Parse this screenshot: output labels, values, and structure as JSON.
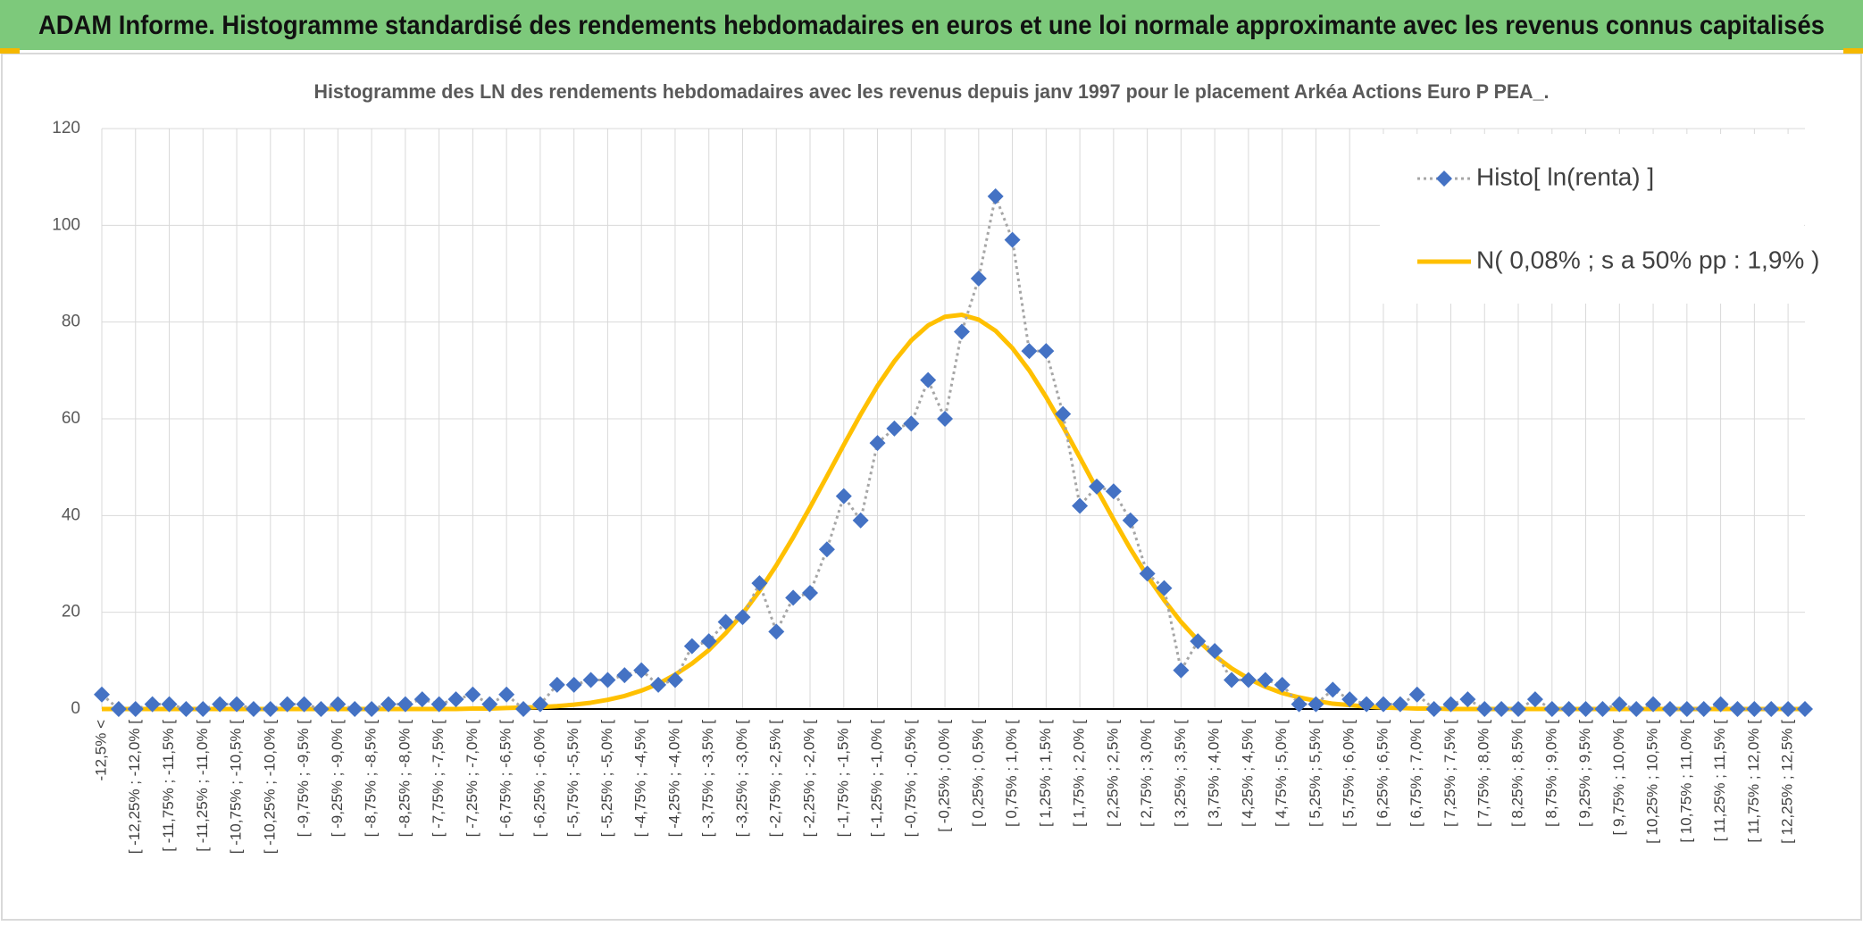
{
  "banner": {
    "title": "ADAM Informe. Histogramme standardisé des rendements hebdomadaires en euros et une loi normale approximante avec les revenus connus capitalisés"
  },
  "chart_data": {
    "type": "line",
    "title": "Histogramme des LN des rendements hebdomadaires avec les revenus depuis janv 1997 pour le placement Arkéa Actions Euro P PEA_.",
    "categories": [
      "-12,5% <",
      null,
      "[ -12,25% ; -12,0% [",
      null,
      "[ -11,75% ; -11,5% [",
      null,
      "[ -11,25% ; -11,0% [",
      null,
      "[ -10,75% ; -10,5% [",
      null,
      "[ -10,25% ; -10,0% [",
      null,
      "[ -9,75% ; -9,5% [",
      null,
      "[ -9,25% ; -9,0% [",
      null,
      "[ -8,75% ; -8,5% [",
      null,
      "[ -8,25% ; -8,0% [",
      null,
      "[ -7,75% ; -7,5% [",
      null,
      "[ -7,25% ; -7,0% [",
      null,
      "[ -6,75% ; -6,5% [",
      null,
      "[ -6,25% ; -6,0% [",
      null,
      "[ -5,75% ; -5,5% [",
      null,
      "[ -5,25% ; -5,0% [",
      null,
      "[ -4,75% ; -4,5% [",
      null,
      "[ -4,25% ; -4,0% [",
      null,
      "[ -3,75% ; -3,5% [",
      null,
      "[ -3,25% ; -3,0% [",
      null,
      "[ -2,75% ; -2,5% [",
      null,
      "[ -2,25% ; -2,0% [",
      null,
      "[ -1,75% ; -1,5% [",
      null,
      "[ -1,25% ; -1,0% [",
      null,
      "[ -0,75% ; -0,5% [",
      null,
      "[ -0,25% ; 0,0% [",
      null,
      "[ 0,25% ; 0,5% [",
      null,
      "[ 0,75% ; 1,0% [",
      null,
      "[ 1,25% ; 1,5% [",
      null,
      "[ 1,75% ; 2,0% [",
      null,
      "[ 2,25% ; 2,5% [",
      null,
      "[ 2,75% ; 3,0% [",
      null,
      "[ 3,25% ; 3,5% [",
      null,
      "[ 3,75% ; 4,0% [",
      null,
      "[ 4,25% ; 4,5% [",
      null,
      "[ 4,75% ; 5,0% [",
      null,
      "[ 5,25% ; 5,5% [",
      null,
      "[ 5,75% ; 6,0% [",
      null,
      "[ 6,25% ; 6,5% [",
      null,
      "[ 6,75% ; 7,0% [",
      null,
      "[ 7,25% ; 7,5% [",
      null,
      "[ 7,75% ; 8,0% [",
      null,
      "[ 8,25% ; 8,5% [",
      null,
      "[ 8,75% ; 9,0% [",
      null,
      "[ 9,25% ; 9,5% [",
      null,
      "[ 9,75% ; 10,0% [",
      null,
      "[ 10,25% ; 10,5% [",
      null,
      "[ 10,75% ; 11,0% [",
      null,
      "[ 11,25% ; 11,5% [",
      null,
      "[ 11,75% ; 12,0% [",
      null,
      "[ 12,25% ; 12,5% [",
      null
    ],
    "series": [
      {
        "name": "Histo[ ln(renta) ]",
        "color": "#4472c4",
        "line_color": "#a6a6a6",
        "marker": "diamond",
        "values": [
          3,
          0,
          0,
          1,
          1,
          0,
          0,
          1,
          1,
          0,
          0,
          1,
          1,
          0,
          1,
          0,
          0,
          1,
          1,
          2,
          1,
          2,
          3,
          1,
          3,
          0,
          1,
          5,
          5,
          6,
          6,
          7,
          8,
          5,
          6,
          13,
          14,
          18,
          19,
          26,
          16,
          23,
          24,
          33,
          44,
          39,
          55,
          58,
          59,
          68,
          60,
          78,
          89,
          106,
          97,
          74,
          74,
          61,
          42,
          46,
          45,
          39,
          28,
          25,
          8,
          14,
          12,
          6,
          6,
          6,
          5,
          1,
          1,
          4,
          2,
          1,
          1,
          1,
          3,
          0,
          1,
          2,
          0,
          0,
          0,
          2,
          0,
          0,
          0,
          0,
          1,
          0,
          1,
          0,
          0,
          0,
          1,
          0,
          0,
          0,
          0,
          0
        ]
      },
      {
        "name": "N( 0,08% ; s a 50% pp : 1,9% )",
        "color": "#ffc000",
        "values": [
          0,
          0,
          0,
          0,
          0,
          0,
          0,
          0,
          0,
          0,
          0,
          0,
          0,
          0,
          0,
          0,
          0,
          0,
          0,
          0,
          0,
          0,
          0.1,
          0.1,
          0.2,
          0.3,
          0.4,
          0.6,
          0.9,
          1.3,
          1.9,
          2.7,
          3.8,
          5.2,
          7.1,
          9.4,
          12.2,
          15.7,
          19.7,
          24.4,
          29.7,
          35.5,
          41.7,
          48.1,
          54.6,
          60.9,
          66.8,
          71.9,
          76.2,
          79.3,
          81.1,
          81.5,
          80.5,
          78.2,
          74.6,
          70.0,
          64.5,
          58.4,
          52.0,
          45.5,
          39.2,
          33.1,
          27.5,
          22.5,
          18.0,
          14.2,
          11.0,
          8.4,
          6.3,
          4.6,
          3.3,
          2.4,
          1.7,
          1.1,
          0.8,
          0.5,
          0.3,
          0.2,
          0.1,
          0.1,
          0,
          0,
          0,
          0,
          0,
          0,
          0,
          0,
          0,
          0,
          0,
          0,
          0,
          0,
          0,
          0,
          0,
          0,
          0,
          0,
          0,
          0
        ]
      }
    ],
    "ylim": [
      0,
      120
    ],
    "yticks": [
      0,
      20,
      40,
      60,
      80,
      100,
      120
    ],
    "grid": true,
    "legend": "top-right"
  }
}
